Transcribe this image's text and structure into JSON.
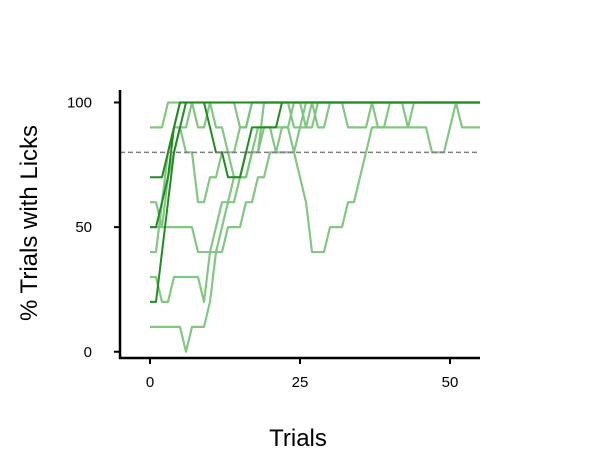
{
  "chart_data": {
    "type": "line",
    "title": "",
    "xlabel": "Trials",
    "ylabel": "% Trials with Licks",
    "xlim": [
      -5,
      55
    ],
    "ylim": [
      -2.5,
      105
    ],
    "xticks": [
      0,
      25,
      50
    ],
    "yticks": [
      0,
      50,
      100
    ],
    "grid": false,
    "legend": "none",
    "reference_line": {
      "y": 80,
      "style": "dashed",
      "color": "#808080"
    },
    "series_colors": {
      "light": "#7cc47c",
      "dark": "#228b22"
    },
    "series": [
      {
        "tone": "light",
        "x": [
          0,
          1,
          2,
          3,
          4,
          5,
          6,
          7,
          8,
          9,
          10,
          11,
          12,
          13,
          14,
          15,
          16,
          17,
          18,
          19,
          20,
          21,
          22,
          23,
          24,
          25,
          26,
          27,
          28,
          29,
          30,
          31,
          32,
          33,
          34,
          35,
          36,
          37,
          38,
          39,
          40,
          41,
          42,
          43,
          44,
          45,
          46,
          47,
          48,
          49,
          50,
          51,
          52,
          53,
          54,
          55
        ],
        "values": [
          10,
          10,
          10,
          10,
          10,
          10,
          0,
          10,
          10,
          10,
          20,
          40,
          40,
          50,
          50,
          50,
          60,
          60,
          70,
          70,
          80,
          80,
          90,
          90,
          80,
          70,
          60,
          40,
          40,
          40,
          50,
          50,
          50,
          60,
          60,
          70,
          80,
          90,
          90,
          90,
          90,
          90,
          90,
          90,
          100,
          100,
          100,
          100,
          100,
          100,
          100,
          100,
          100,
          100,
          100,
          100
        ]
      },
      {
        "tone": "light",
        "x": [
          0,
          1,
          2,
          3,
          4,
          5,
          6,
          7,
          8,
          9,
          10,
          11,
          12,
          13,
          14,
          15,
          16,
          17,
          18,
          19,
          20,
          21,
          22,
          23,
          24,
          25,
          26,
          27,
          28,
          29,
          30,
          31,
          32,
          33,
          34,
          35,
          36,
          37,
          38,
          39,
          40,
          41,
          42,
          43,
          44,
          45,
          46,
          47,
          48,
          49,
          50,
          51,
          52,
          53,
          54,
          55
        ],
        "values": [
          90,
          90,
          90,
          100,
          100,
          100,
          100,
          100,
          90,
          90,
          100,
          100,
          100,
          100,
          100,
          90,
          90,
          100,
          100,
          100,
          100,
          100,
          100,
          100,
          90,
          90,
          100,
          100,
          100,
          100,
          100,
          100,
          100,
          100,
          100,
          100,
          100,
          100,
          90,
          90,
          100,
          100,
          100,
          90,
          90,
          90,
          90,
          80,
          80,
          80,
          90,
          100,
          90,
          90,
          90,
          90
        ]
      },
      {
        "tone": "light",
        "x": [
          0,
          1,
          2,
          3,
          4,
          5,
          6,
          7,
          8,
          9,
          10,
          11,
          12,
          13,
          14,
          15,
          16,
          17,
          18,
          19,
          20,
          21,
          22,
          23,
          24,
          25,
          26,
          27,
          28,
          29,
          30,
          31,
          32,
          33,
          34,
          35,
          36,
          37,
          38,
          39,
          40,
          41,
          42,
          43,
          44,
          45,
          46,
          47,
          48,
          49,
          50,
          51,
          52,
          53,
          54,
          55
        ],
        "values": [
          30,
          30,
          20,
          20,
          30,
          30,
          30,
          30,
          30,
          20,
          40,
          40,
          50,
          60,
          60,
          70,
          70,
          80,
          80,
          100,
          100,
          100,
          100,
          100,
          100,
          100,
          100,
          100,
          100,
          100,
          100,
          100,
          100,
          100,
          100,
          100,
          100,
          100,
          100,
          100,
          100,
          100,
          100,
          100,
          100,
          100,
          100,
          100,
          100,
          100,
          100,
          100,
          100,
          100,
          100,
          100
        ]
      },
      {
        "tone": "light",
        "x": [
          0,
          1,
          2,
          3,
          4,
          5,
          6,
          7,
          8,
          9,
          10,
          11,
          12,
          13,
          14,
          15,
          16,
          17,
          18,
          19,
          20,
          21,
          22,
          23,
          24,
          25,
          26,
          27,
          28,
          29,
          30,
          31,
          32,
          33,
          34,
          35,
          36,
          37,
          38,
          39,
          40,
          41,
          42,
          43,
          44,
          45,
          46,
          47,
          48,
          49,
          50,
          51,
          52,
          53,
          54,
          55
        ],
        "values": [
          60,
          60,
          50,
          50,
          50,
          50,
          50,
          50,
          40,
          40,
          40,
          50,
          60,
          60,
          70,
          70,
          80,
          80,
          90,
          90,
          90,
          90,
          90,
          90,
          100,
          100,
          90,
          90,
          100,
          100,
          100,
          100,
          100,
          90,
          90,
          90,
          90,
          100,
          100,
          100,
          100,
          100,
          100,
          100,
          100,
          100,
          100,
          100,
          100,
          100,
          100,
          100,
          100,
          100,
          100,
          100
        ]
      },
      {
        "tone": "light",
        "x": [
          0,
          1,
          2,
          3,
          4,
          5,
          6,
          7,
          8,
          9,
          10,
          11,
          12,
          13,
          14,
          15,
          16,
          17,
          18,
          19,
          20,
          21,
          22,
          23,
          24,
          25,
          26,
          27,
          28,
          29,
          30,
          31,
          32,
          33,
          34,
          35,
          36,
          37,
          38,
          39,
          40,
          41,
          42,
          43,
          44,
          45,
          46,
          47,
          48,
          49,
          50,
          51,
          52,
          53,
          54,
          55
        ],
        "values": [
          50,
          50,
          50,
          70,
          80,
          90,
          90,
          100,
          100,
          100,
          100,
          90,
          90,
          80,
          80,
          90,
          90,
          100,
          100,
          100,
          100,
          100,
          100,
          100,
          100,
          100,
          100,
          100,
          90,
          90,
          100,
          100,
          100,
          100,
          100,
          100,
          100,
          100,
          100,
          100,
          100,
          100,
          100,
          100,
          100,
          100,
          100,
          100,
          100,
          100,
          100,
          100,
          100,
          100,
          100,
          100
        ]
      },
      {
        "tone": "light",
        "x": [
          0,
          1,
          2,
          3,
          4,
          5,
          6,
          7,
          8,
          9,
          10,
          11,
          12,
          13,
          14,
          15,
          16,
          17,
          18,
          19,
          20,
          21,
          22,
          23,
          24,
          25,
          26,
          27,
          28,
          29,
          30,
          31,
          32,
          33,
          34,
          35,
          36,
          37,
          38,
          39,
          40,
          41,
          42,
          43,
          44,
          45,
          46,
          47,
          48,
          49,
          50,
          51,
          52,
          53,
          54,
          55
        ],
        "values": [
          40,
          40,
          60,
          80,
          90,
          90,
          80,
          80,
          60,
          60,
          70,
          70,
          80,
          80,
          70,
          70,
          70,
          80,
          80,
          90,
          90,
          80,
          80,
          80,
          80,
          90,
          90,
          100,
          100,
          100,
          100,
          100,
          100,
          100,
          100,
          100,
          100,
          100,
          100,
          100,
          100,
          100,
          100,
          100,
          100,
          100,
          100,
          100,
          100,
          100,
          100,
          100,
          100,
          100,
          100,
          100
        ]
      },
      {
        "tone": "dark",
        "x": [
          0,
          1,
          2,
          3,
          4,
          5,
          6,
          7,
          8,
          9,
          10,
          11,
          12,
          13,
          14,
          15,
          16,
          17,
          18,
          19,
          20,
          21,
          22,
          23,
          24,
          25,
          26,
          27,
          28,
          29,
          30,
          31,
          32,
          33,
          34,
          35,
          36,
          37,
          38,
          39,
          40,
          41,
          42,
          43,
          44,
          45,
          46,
          47,
          48,
          49,
          50,
          51,
          52,
          53,
          54,
          55
        ],
        "values": [
          20,
          20,
          40,
          60,
          80,
          90,
          100,
          100,
          100,
          100,
          100,
          100,
          100,
          100,
          100,
          100,
          100,
          100,
          100,
          100,
          100,
          100,
          100,
          100,
          100,
          100,
          100,
          100,
          100,
          100,
          100,
          100,
          100,
          100,
          100,
          100,
          100,
          100,
          100,
          100,
          100,
          100,
          100,
          100,
          100,
          100,
          100,
          100,
          100,
          100,
          100,
          100,
          100,
          100,
          100,
          100
        ]
      },
      {
        "tone": "dark",
        "x": [
          0,
          1,
          2,
          3,
          4,
          5,
          6,
          7,
          8,
          9,
          10,
          11,
          12,
          13,
          14,
          15,
          16,
          17,
          18,
          19,
          20,
          21,
          22,
          23,
          24,
          25,
          26,
          27,
          28,
          29,
          30,
          31,
          32,
          33,
          34,
          35,
          36,
          37,
          38,
          39,
          40,
          41,
          42,
          43,
          44,
          45,
          46,
          47,
          48,
          49,
          50,
          51,
          52,
          53,
          54,
          55
        ],
        "values": [
          70,
          70,
          70,
          80,
          90,
          100,
          100,
          100,
          100,
          100,
          100,
          100,
          100,
          100,
          100,
          100,
          100,
          100,
          100,
          100,
          100,
          100,
          100,
          100,
          100,
          100,
          100,
          100,
          100,
          100,
          100,
          100,
          100,
          100,
          100,
          100,
          100,
          100,
          100,
          100,
          100,
          100,
          100,
          100,
          100,
          100,
          100,
          100,
          100,
          100,
          100,
          100,
          100,
          100,
          100,
          100
        ]
      },
      {
        "tone": "dark",
        "x": [
          0,
          1,
          2,
          3,
          4,
          5,
          6,
          7,
          8,
          9,
          10,
          11,
          12,
          13,
          14,
          15,
          16,
          17,
          18,
          19,
          20,
          21,
          22,
          23,
          24,
          25,
          26,
          27,
          28,
          29,
          30,
          31,
          32,
          33,
          34,
          35,
          36,
          37,
          38,
          39,
          40,
          41,
          42,
          43,
          44,
          45,
          46,
          47,
          48,
          49,
          50,
          51,
          52,
          53,
          54,
          55
        ],
        "values": [
          50,
          50,
          60,
          70,
          90,
          100,
          100,
          100,
          100,
          100,
          90,
          80,
          80,
          70,
          70,
          70,
          80,
          90,
          90,
          90,
          90,
          90,
          100,
          100,
          100,
          100,
          100,
          100,
          100,
          100,
          100,
          100,
          100,
          100,
          100,
          100,
          100,
          100,
          100,
          100,
          100,
          100,
          100,
          100,
          100,
          100,
          100,
          100,
          100,
          100,
          100,
          100,
          100,
          100,
          100,
          100
        ]
      }
    ]
  }
}
